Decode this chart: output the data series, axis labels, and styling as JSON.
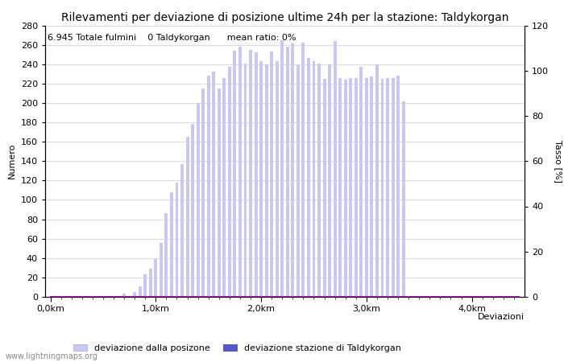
{
  "title": "Rilevamenti per deviazione di posizione ultime 24h per la stazione: Taldykorgan",
  "subtitle": "6.945 Totale fulmini    0 Taldykorgan      mean ratio: 0%",
  "xlabel": "Deviazioni",
  "ylabel_left": "Numero",
  "ylabel_right": "Tasso [%]",
  "watermark": "www.lightningmaps.org",
  "xtick_labels": [
    "0,0km",
    "1,0km",
    "2,0km",
    "3,0km",
    "4,0km"
  ],
  "xtick_positions": [
    0,
    20,
    40,
    60,
    80
  ],
  "ylim_left": [
    0,
    280
  ],
  "ylim_right": [
    0,
    120
  ],
  "yticks_left": [
    0,
    20,
    40,
    60,
    80,
    100,
    120,
    140,
    160,
    180,
    200,
    220,
    240,
    260,
    280
  ],
  "yticks_right": [
    0,
    20,
    40,
    60,
    80,
    100,
    120
  ],
  "bar_values": [
    0,
    0,
    0,
    0,
    0,
    0,
    0,
    0,
    0,
    0,
    0,
    0,
    0,
    1,
    3,
    0,
    5,
    11,
    23,
    29,
    39,
    56,
    86,
    108,
    118,
    137,
    165,
    178,
    200,
    215,
    228,
    232,
    215,
    226,
    237,
    254,
    258,
    241,
    255,
    252,
    243,
    240,
    253,
    243,
    265,
    258,
    261,
    239,
    262,
    246,
    243,
    241,
    225,
    240,
    264,
    226,
    224,
    226,
    226,
    237,
    226,
    227,
    240,
    225,
    226,
    226,
    228,
    202,
    0,
    0,
    0,
    0,
    0,
    0,
    0,
    0,
    0,
    0,
    0,
    0,
    0,
    0,
    0,
    0,
    0,
    0,
    0,
    0,
    0,
    0
  ],
  "station_values": [
    0,
    0,
    0,
    0,
    0,
    0,
    0,
    0,
    0,
    0,
    0,
    0,
    0,
    0,
    0,
    0,
    0,
    0,
    0,
    0,
    0,
    0,
    0,
    0,
    0,
    0,
    0,
    0,
    0,
    0,
    0,
    0,
    0,
    0,
    0,
    0,
    0,
    0,
    0,
    0,
    0,
    0,
    0,
    0,
    0,
    0,
    0,
    0,
    0,
    0,
    0,
    0,
    0,
    0,
    0,
    0,
    0,
    0,
    0,
    0,
    0,
    0,
    0,
    0,
    0,
    0,
    0,
    0,
    0,
    0,
    0,
    0,
    0,
    0,
    0,
    0,
    0,
    0,
    0,
    0,
    0,
    0,
    0,
    0,
    0,
    0,
    0,
    0,
    0,
    0
  ],
  "ratio_values": [
    0,
    0,
    0,
    0,
    0,
    0,
    0,
    0,
    0,
    0,
    0,
    0,
    0,
    0,
    0,
    0,
    0,
    0,
    0,
    0,
    0,
    0,
    0,
    0,
    0,
    0,
    0,
    0,
    0,
    0,
    0,
    0,
    0,
    0,
    0,
    0,
    0,
    0,
    0,
    0,
    0,
    0,
    0,
    0,
    0,
    0,
    0,
    0,
    0,
    0,
    0,
    0,
    0,
    0,
    0,
    0,
    0,
    0,
    0,
    0,
    0,
    0,
    0,
    0,
    0,
    0,
    0,
    0,
    0,
    0,
    0,
    0,
    0,
    0,
    0,
    0,
    0,
    0,
    0,
    0,
    0,
    0,
    0,
    0,
    0,
    0,
    0,
    0,
    0,
    0
  ],
  "bar_color_light": "#c8c8f0",
  "bar_color_dark": "#5555cc",
  "line_color": "#cc00cc",
  "title_fontsize": 10,
  "subtitle_fontsize": 8,
  "axis_fontsize": 8,
  "tick_fontsize": 8,
  "legend_fontsize": 8,
  "bg_color": "#ffffff",
  "grid_color": "#cccccc",
  "n_bars": 90,
  "xlim_max": 90
}
